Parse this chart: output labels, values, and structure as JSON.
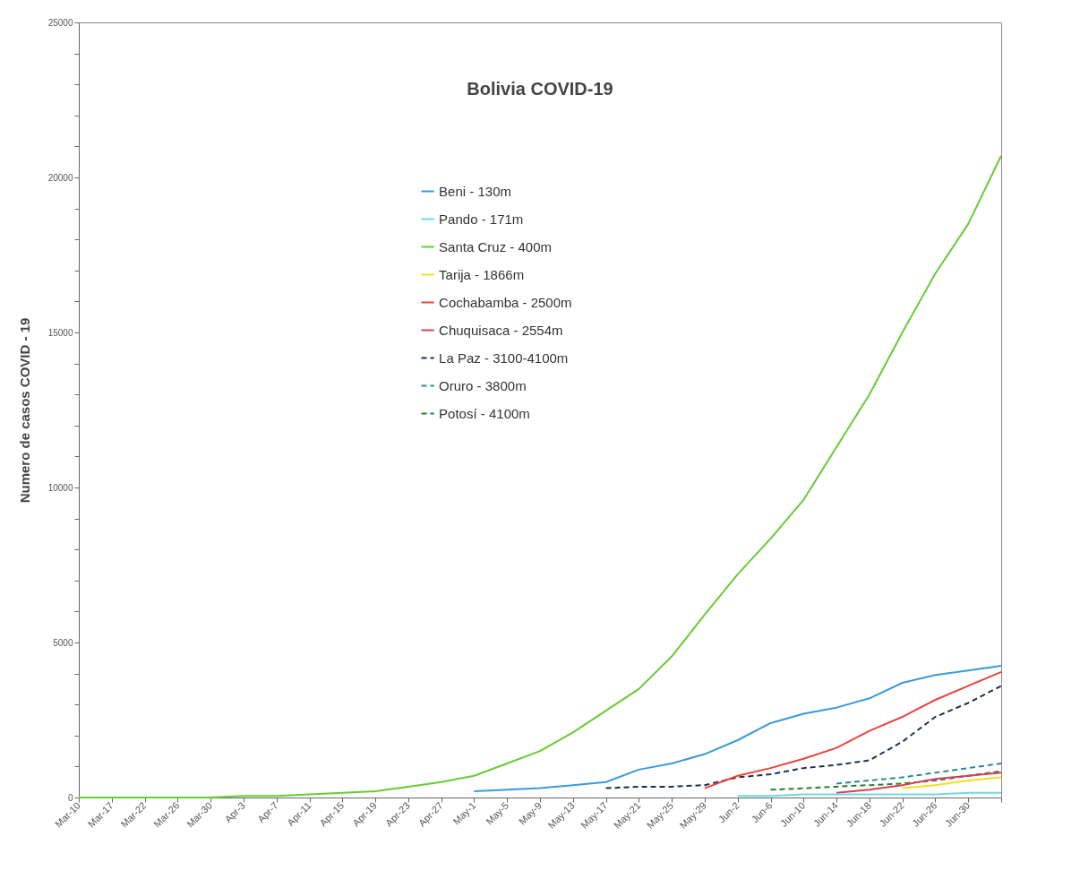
{
  "chart_data": {
    "type": "line",
    "title": "Bolivia COVID-19",
    "ylabel": "Numero de casos  COVID - 19",
    "categories": [
      "Mar-10",
      "Mar-17",
      "Mar-22",
      "Mar-26",
      "Mar-30",
      "Apr-3",
      "Apr-7",
      "Apr-11",
      "Apr-15",
      "Apr-19",
      "Apr-23",
      "Apr-27",
      "May-1",
      "May-5",
      "May-9",
      "May-13",
      "May-17",
      "May-21",
      "May-25",
      "May-29",
      "Jun-2",
      "Jun-6",
      "Jun-10",
      "Jun-14",
      "Jun-18",
      "Jun-22",
      "Jun-26",
      "Jun-30",
      null
    ],
    "ylim": [
      0,
      25000
    ],
    "yticks": [
      0,
      {
        "value": 1000,
        "label": null
      },
      {
        "value": 2000,
        "label": null
      },
      {
        "value": 3000,
        "label": null
      },
      {
        "value": 4000,
        "label": null
      },
      5000,
      {
        "value": 6000,
        "label": null
      },
      {
        "value": 7000,
        "label": null
      },
      {
        "value": 8000,
        "label": null
      },
      {
        "value": 9000,
        "label": null
      },
      10000,
      {
        "value": 11000,
        "label": null
      },
      {
        "value": 12000,
        "label": null
      },
      {
        "value": 13000,
        "label": null
      },
      {
        "value": 14000,
        "label": null
      },
      15000,
      {
        "value": 16000,
        "label": null
      },
      {
        "value": 17000,
        "label": null
      },
      {
        "value": 18000,
        "label": null
      },
      {
        "value": 19000,
        "label": null
      },
      20000,
      {
        "value": 21000,
        "label": null
      },
      {
        "value": 22000,
        "label": null
      },
      {
        "value": 23000,
        "label": null
      },
      {
        "value": 24000,
        "label": null
      },
      25000
    ],
    "grid": false,
    "legend": "top",
    "series": [
      {
        "name": "Beni - 130m",
        "color": "#3a9ad9",
        "line_style": "solid",
        "values": [
          null,
          null,
          null,
          null,
          null,
          null,
          null,
          null,
          null,
          null,
          null,
          null,
          200,
          250,
          300,
          400,
          500,
          900,
          1100,
          1400,
          1850,
          2400,
          2700,
          2900,
          3200,
          3700,
          3950,
          4100,
          4250
        ]
      },
      {
        "name": "Pando - 171m",
        "color": "#6fd8e4",
        "line_style": "solid",
        "values": [
          null,
          null,
          null,
          null,
          null,
          null,
          null,
          null,
          null,
          null,
          null,
          null,
          null,
          null,
          null,
          null,
          null,
          null,
          null,
          null,
          50,
          50,
          100,
          100,
          100,
          100,
          100,
          150,
          150
        ]
      },
      {
        "name": "Santa Cruz - 400m",
        "color": "#66cc33",
        "line_style": "solid",
        "values": [
          0,
          0,
          0,
          0,
          0,
          50,
          50,
          100,
          150,
          200,
          350,
          500,
          700,
          1100,
          1500,
          2100,
          2800,
          3500,
          4550,
          5900,
          7200,
          8350,
          9600,
          11300,
          13000,
          15000,
          16900,
          18500,
          20700
        ]
      },
      {
        "name": "Tarija - 1866m",
        "color": "#f0e020",
        "line_style": "solid",
        "values": [
          null,
          null,
          null,
          null,
          null,
          null,
          null,
          null,
          null,
          null,
          null,
          null,
          null,
          null,
          null,
          null,
          null,
          null,
          null,
          null,
          null,
          null,
          null,
          null,
          null,
          300,
          400,
          550,
          650
        ]
      },
      {
        "name": "Cochabamba - 2500m",
        "color": "#e8453c",
        "line_style": "solid",
        "values": [
          null,
          null,
          null,
          null,
          null,
          null,
          null,
          null,
          null,
          null,
          null,
          null,
          null,
          null,
          null,
          null,
          null,
          null,
          null,
          300,
          700,
          950,
          1250,
          1600,
          2150,
          2600,
          3150,
          3600,
          4050
        ]
      },
      {
        "name": "Chuquisaca - 2554m",
        "color": "#d6405a",
        "line_style": "solid",
        "values": [
          null,
          null,
          null,
          null,
          null,
          null,
          null,
          null,
          null,
          null,
          null,
          null,
          null,
          null,
          null,
          null,
          null,
          null,
          null,
          null,
          null,
          null,
          null,
          150,
          250,
          400,
          600,
          700,
          800
        ]
      },
      {
        "name": "La Paz - 3100-4100m",
        "color": "#1f2f4f",
        "line_style": "dashed",
        "values": [
          null,
          null,
          null,
          null,
          null,
          null,
          null,
          null,
          null,
          null,
          null,
          null,
          null,
          null,
          null,
          null,
          300,
          350,
          350,
          400,
          650,
          750,
          950,
          1050,
          1200,
          1800,
          2600,
          3050,
          3600
        ]
      },
      {
        "name": "Oruro - 3800m",
        "color": "#2a8a8a",
        "line_style": "dashed",
        "values": [
          null,
          null,
          null,
          null,
          null,
          null,
          null,
          null,
          null,
          null,
          null,
          null,
          null,
          null,
          null,
          null,
          null,
          null,
          null,
          null,
          null,
          null,
          null,
          450,
          550,
          650,
          800,
          950,
          1100
        ]
      },
      {
        "name": "Potosí - 4100m",
        "color": "#2e7d32",
        "line_style": "dashed",
        "values": [
          null,
          null,
          null,
          null,
          null,
          null,
          null,
          null,
          null,
          null,
          null,
          null,
          null,
          null,
          null,
          null,
          null,
          null,
          null,
          null,
          null,
          250,
          300,
          350,
          400,
          450,
          550,
          700,
          850
        ]
      }
    ]
  }
}
